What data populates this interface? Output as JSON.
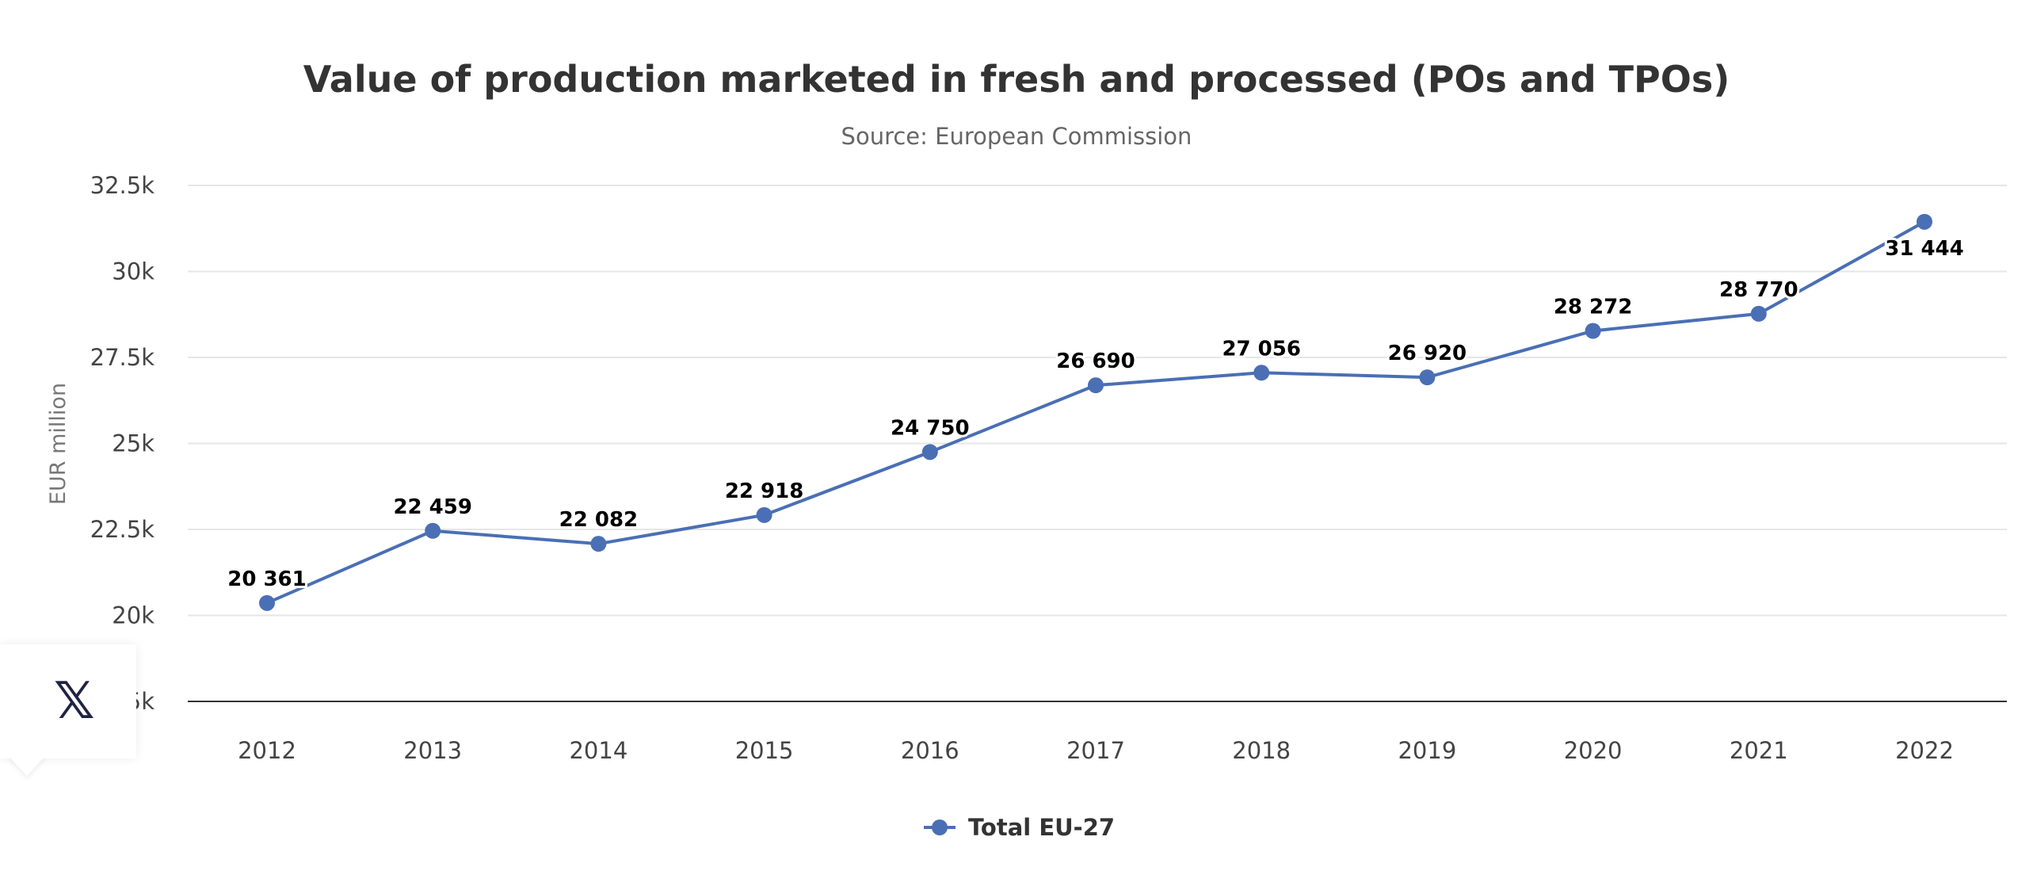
{
  "chart_data": {
    "type": "line",
    "title": "Value of production marketed in fresh and processed (POs and TPOs)",
    "subtitle": "Source: European Commission",
    "xlabel": "",
    "ylabel": "EUR million",
    "categories": [
      "2012",
      "2013",
      "2014",
      "2015",
      "2016",
      "2017",
      "2018",
      "2019",
      "2020",
      "2021",
      "2022"
    ],
    "series": [
      {
        "name": "Total EU-27",
        "color": "#4a6fb5",
        "values": [
          20361,
          22459,
          22082,
          22918,
          24750,
          26690,
          27056,
          26920,
          28272,
          28770,
          31444
        ],
        "labels": [
          "20 361",
          "22 459",
          "22 082",
          "22 918",
          "24 750",
          "26 690",
          "27 056",
          "26 920",
          "28 272",
          "28 770",
          "31 444"
        ]
      }
    ],
    "ylim": [
      17500,
      32500
    ],
    "yticks": [
      17500,
      20000,
      22500,
      25000,
      27500,
      30000,
      32500
    ],
    "ytick_labels": [
      "17.5k",
      "20k",
      "22.5k",
      "25k",
      "27.5k",
      "30k",
      "32.5k"
    ],
    "grid": true,
    "legend_position": "bottom-center"
  },
  "share": {
    "icon": "x-logo-icon",
    "label": "X"
  }
}
